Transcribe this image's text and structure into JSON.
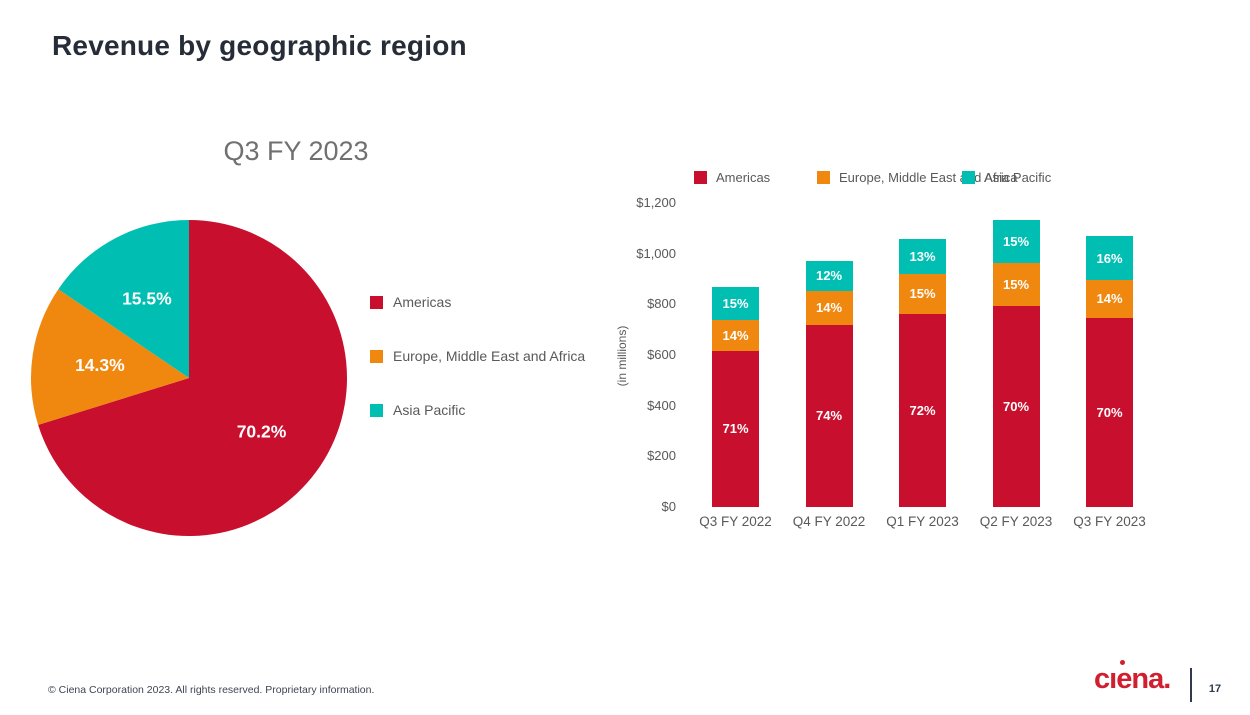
{
  "slide": {
    "title": "Revenue by geographic region",
    "footer": "© Ciena Corporation 2023. All rights reserved. Proprietary information.",
    "logo_text": "ciena.",
    "page_number": "17"
  },
  "colors": {
    "americas": "#c8102e",
    "emea": "#f0870f",
    "asia_pacific": "#00bfb2",
    "title_text": "#262d38",
    "muted_text": "#595959",
    "logo_red": "#d0202f"
  },
  "chart_data": [
    {
      "type": "pie",
      "title": "Q3 FY 2023",
      "labels": [
        "Americas",
        "Europe, Middle East and Africa",
        "Asia Pacific"
      ],
      "values": [
        70.2,
        14.3,
        15.5
      ],
      "value_labels": [
        "70.2%",
        "14.3%",
        "15.5%"
      ],
      "colors": [
        "#c8102e",
        "#f0870f",
        "#00bfb2"
      ],
      "start_angle_deg": 0,
      "direction": "clockwise",
      "legend_position": "right"
    },
    {
      "type": "bar",
      "stacked": true,
      "categories": [
        "Q3 FY 2022",
        "Q4 FY 2022",
        "Q1 FY 2023",
        "Q2 FY 2023",
        "Q3 FY 2023"
      ],
      "totals_in_millions": [
        868,
        971,
        1058,
        1133,
        1068
      ],
      "series": [
        {
          "name": "Americas",
          "color": "#c8102e",
          "pct": [
            71,
            74,
            72,
            70,
            70
          ],
          "pct_labels": [
            "71%",
            "74%",
            "72%",
            "70%",
            "70%"
          ]
        },
        {
          "name": "Europe, Middle East and Africa",
          "color": "#f0870f",
          "pct": [
            14,
            14,
            15,
            15,
            14
          ],
          "pct_labels": [
            "14%",
            "14%",
            "15%",
            "15%",
            "14%"
          ]
        },
        {
          "name": "Asia Pacific",
          "color": "#00bfb2",
          "pct": [
            15,
            12,
            13,
            15,
            16
          ],
          "pct_labels": [
            "15%",
            "12%",
            "13%",
            "15%",
            "16%"
          ]
        }
      ],
      "ylabel": "(in millions)",
      "ylim": [
        0,
        1200
      ],
      "ytick_values": [
        0,
        200,
        400,
        600,
        800,
        1000,
        1200
      ],
      "ytick_labels": [
        "$0",
        "$200",
        "$400",
        "$600",
        "$800",
        "$1,000",
        "$1,200"
      ],
      "legend_position": "top",
      "grid": false
    }
  ]
}
